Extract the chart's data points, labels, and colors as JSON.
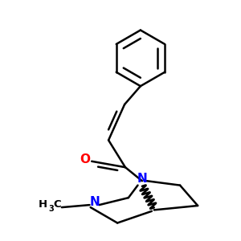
{
  "bg_color": "#ffffff",
  "bond_color": "#000000",
  "N_color": "#0000ff",
  "O_color": "#ff0000",
  "lw": 1.8,
  "dbo": 0.018,
  "figsize": [
    3.0,
    3.0
  ],
  "dpi": 100,
  "xlim": [
    0.0,
    1.0
  ],
  "ylim": [
    0.0,
    1.0
  ]
}
